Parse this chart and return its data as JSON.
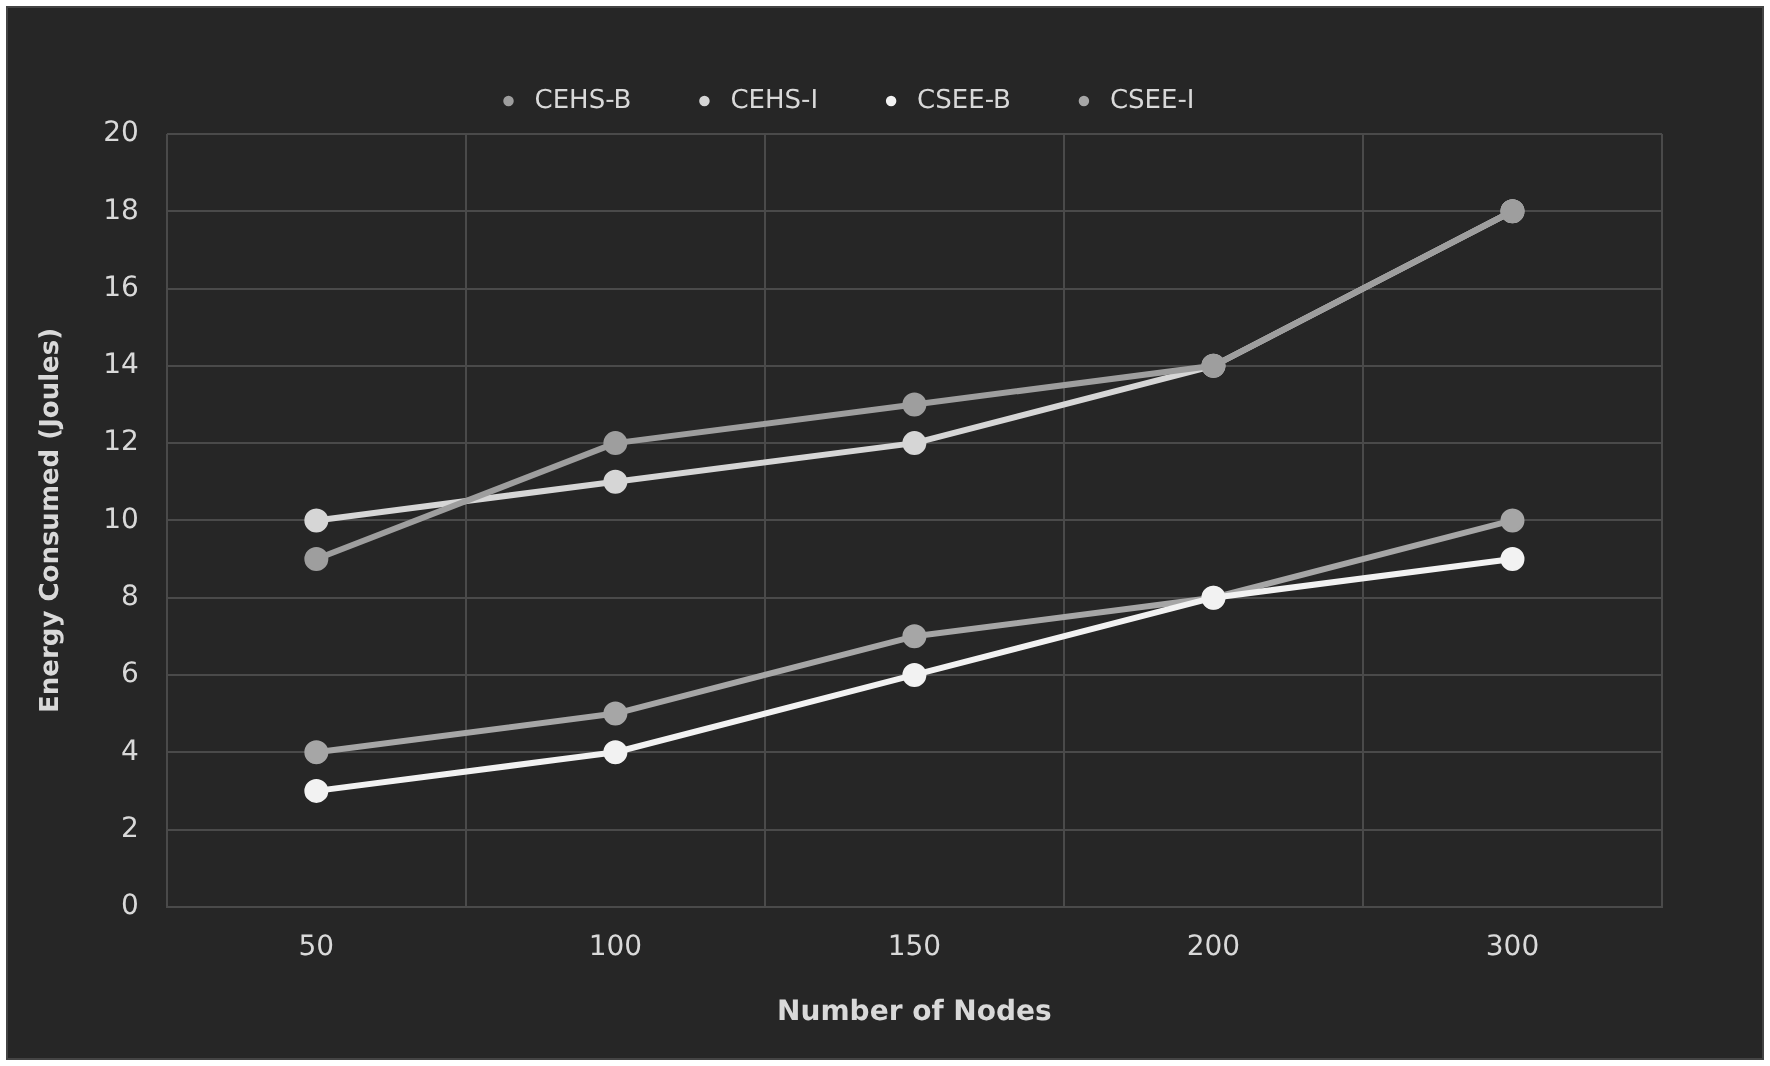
{
  "chart_data": {
    "type": "line",
    "xlabel": "Number of Nodes",
    "ylabel": "Energy Consumed (Joules)",
    "categories": [
      "50",
      "100",
      "150",
      "200",
      "300"
    ],
    "series": [
      {
        "name": "CEHS-B",
        "color": "#9e9e9e",
        "values": [
          9,
          12,
          13,
          14,
          18
        ]
      },
      {
        "name": "CEHS-I",
        "color": "#d6d6d6",
        "values": [
          10,
          11,
          12,
          14,
          18
        ]
      },
      {
        "name": "CSEE-B",
        "color": "#f2f2f2",
        "values": [
          3,
          4,
          6,
          8,
          9
        ]
      },
      {
        "name": "CSEE-I",
        "color": "#a6a6a6",
        "values": [
          4,
          5,
          7,
          8,
          10
        ]
      }
    ],
    "ylim": [
      0,
      20
    ],
    "yticks": [
      0,
      2,
      4,
      6,
      8,
      10,
      12,
      14,
      16,
      18,
      20
    ],
    "grid": true,
    "legend": "top",
    "marker": "circle",
    "line_style": "solid"
  }
}
